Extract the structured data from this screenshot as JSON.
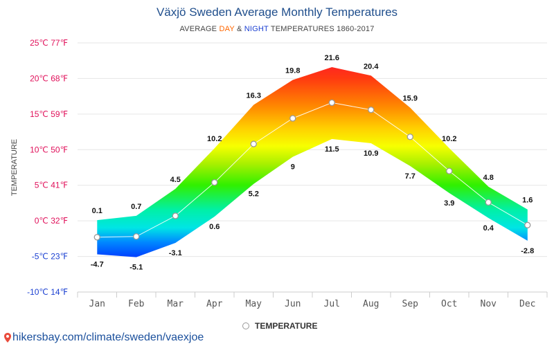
{
  "title": "Växjö Sweden Average Monthly Temperatures",
  "subtitle": {
    "prefix": "AVERAGE ",
    "day": "DAY",
    "amp": " & ",
    "night": "NIGHT",
    "suffix": " TEMPERATURES 1860-2017"
  },
  "source": "hikersbay.com/climate/sweden/vaexjoe",
  "legend_label": "TEMPERATURE",
  "colors": {
    "day": "#ff6600",
    "night": "#1a3fd1",
    "title": "#1f4e8c",
    "axis_label": "#e0105a",
    "axis_label_low": "#1a3fd1"
  },
  "chart_data": {
    "type": "area",
    "categories": [
      "Jan",
      "Feb",
      "Mar",
      "Apr",
      "May",
      "Jun",
      "Jul",
      "Aug",
      "Sep",
      "Oct",
      "Nov",
      "Dec"
    ],
    "series": [
      {
        "name": "DAY",
        "values": [
          0.1,
          0.7,
          4.5,
          10.2,
          16.3,
          19.8,
          21.6,
          20.4,
          15.9,
          10.2,
          4.8,
          1.6
        ]
      },
      {
        "name": "NIGHT",
        "values": [
          -4.7,
          -5.1,
          -3.1,
          0.6,
          5.2,
          9,
          11.5,
          10.9,
          7.7,
          3.9,
          0.4,
          -2.8
        ]
      },
      {
        "name": "TEMPERATURE",
        "values": [
          -2.3,
          -2.2,
          0.7,
          5.4,
          10.8,
          14.4,
          16.6,
          15.6,
          11.8,
          7.0,
          2.6,
          -0.6
        ]
      }
    ],
    "ylabel": "TEMPERATURE",
    "ylim": [
      -10,
      25
    ],
    "yticks": [
      25,
      20,
      15,
      10,
      5,
      0,
      -5,
      -10
    ],
    "ytick_labels": [
      "25℃ 77℉",
      "20℃ 68℉",
      "15℃ 59℉",
      "10℃ 50℉",
      "5℃ 41℉",
      "0℃ 32℉",
      "-5℃ 23℉",
      "-10℃ 14℉"
    ],
    "grid": true,
    "legend_position": "bottom-center"
  }
}
